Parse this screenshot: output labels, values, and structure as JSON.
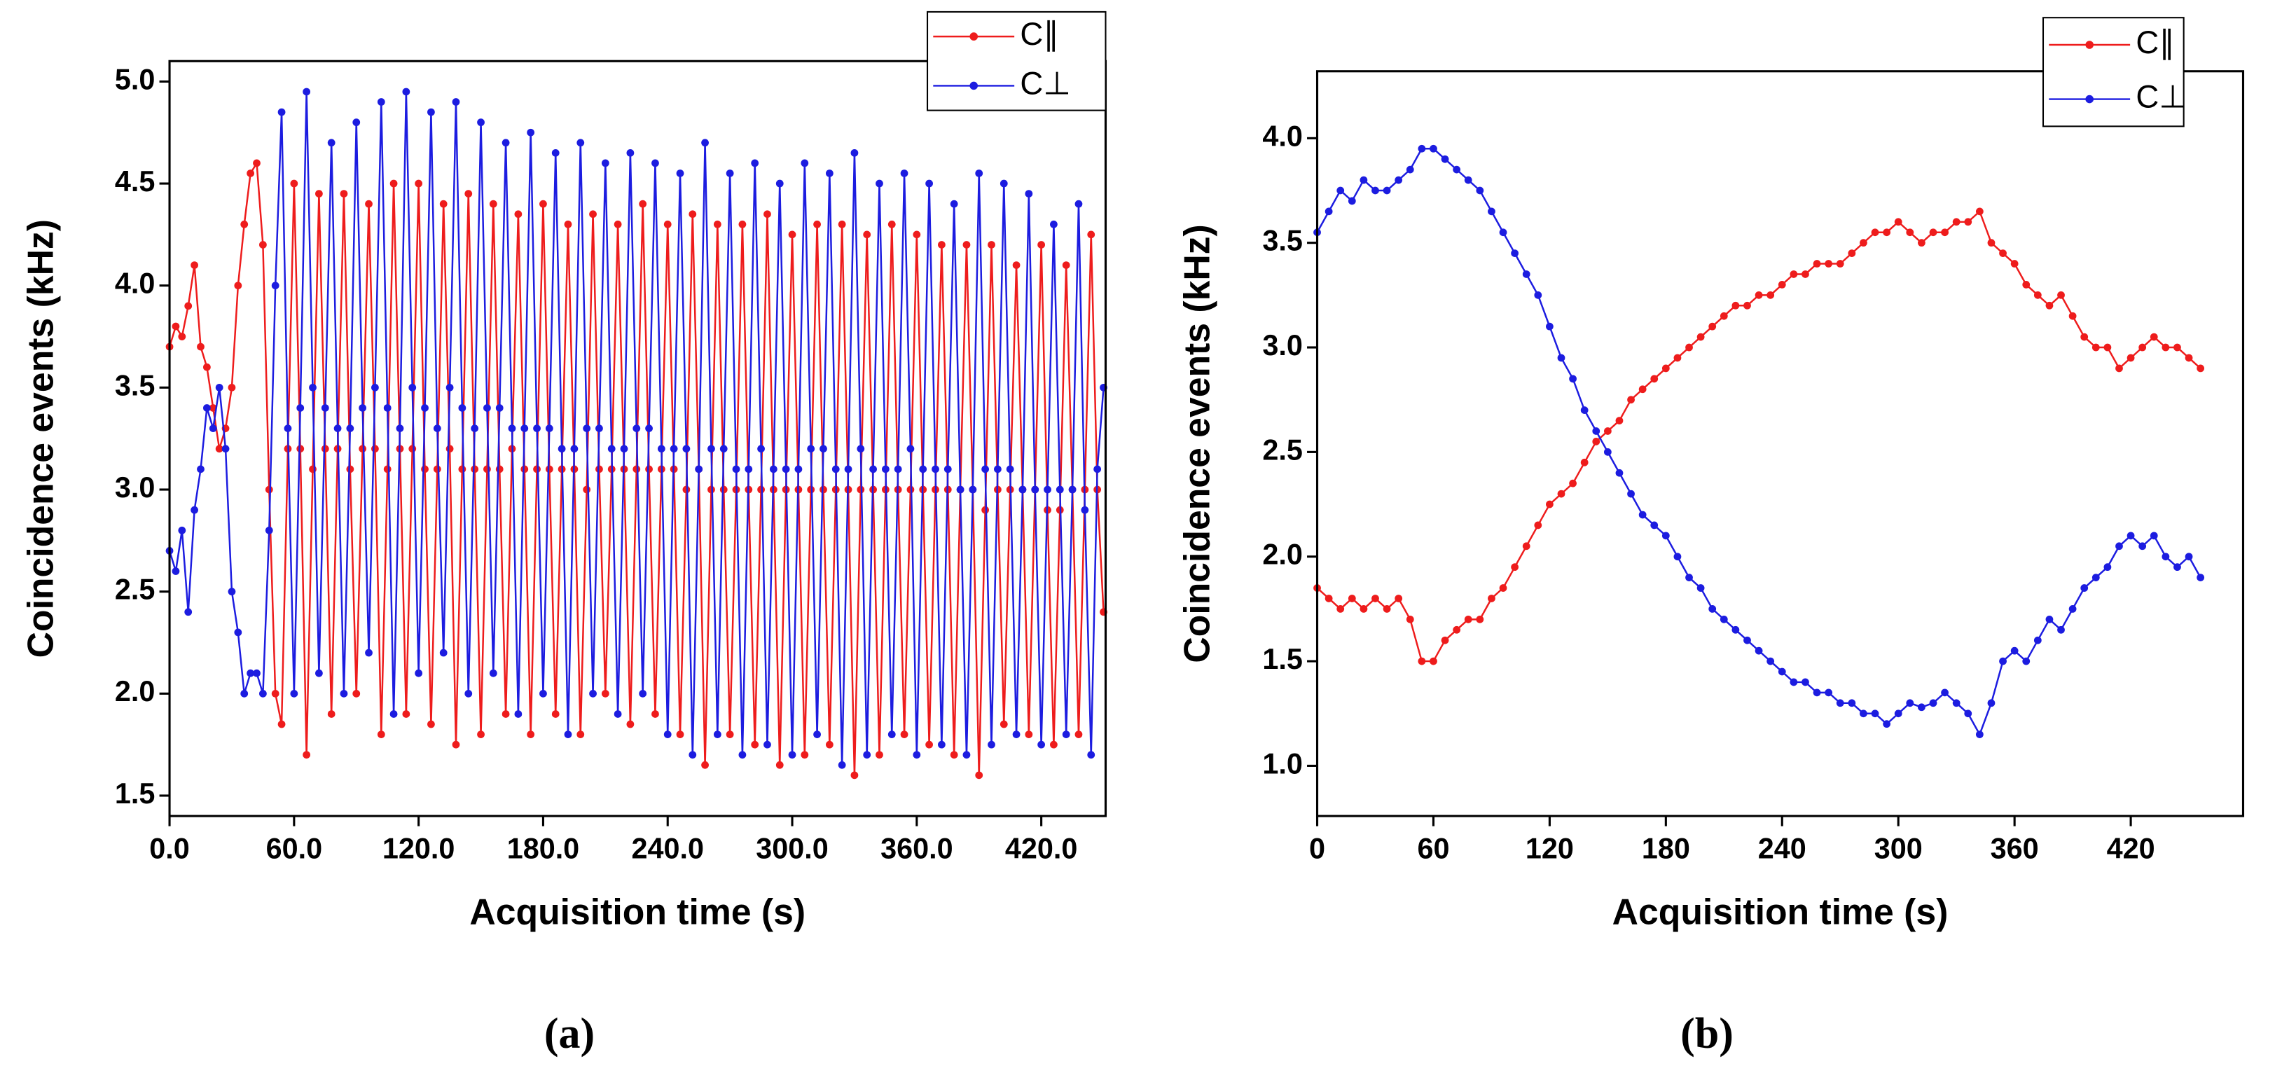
{
  "chart_data": [
    {
      "type": "line",
      "caption": "(a)",
      "xlabel": "Acquisition time (s)",
      "ylabel": "Coincidence events (kHz)",
      "xlim": [
        0,
        451
      ],
      "ylim": [
        1.4,
        5.1
      ],
      "xticks": [
        {
          "value": 0,
          "label": "0.0"
        },
        {
          "value": 60,
          "label": "60.0"
        },
        {
          "value": 120,
          "label": "120.0"
        },
        {
          "value": 180,
          "label": "180.0"
        },
        {
          "value": 240,
          "label": "240.0"
        },
        {
          "value": 300,
          "label": "300.0"
        },
        {
          "value": 360,
          "label": "360.0"
        },
        {
          "value": 420,
          "label": "420.0"
        }
      ],
      "yticks": [
        1.5,
        {
          "value": 2,
          "label": "2.0"
        },
        2.5,
        {
          "value": 3,
          "label": "3.0"
        },
        3.5,
        {
          "value": 4,
          "label": "4.0"
        },
        4.5,
        {
          "value": 5,
          "label": "5.0"
        }
      ],
      "legend": "top-right",
      "x": [
        0,
        3,
        6,
        9,
        12,
        15,
        18,
        21,
        24,
        27,
        30,
        33,
        36,
        39,
        42,
        45,
        48,
        51,
        54,
        57,
        60,
        63,
        66,
        69,
        72,
        75,
        78,
        81,
        84,
        87,
        90,
        93,
        96,
        99,
        102,
        105,
        108,
        111,
        114,
        117,
        120,
        123,
        126,
        129,
        132,
        135,
        138,
        141,
        144,
        147,
        150,
        153,
        156,
        159,
        162,
        165,
        168,
        171,
        174,
        177,
        180,
        183,
        186,
        189,
        192,
        195,
        198,
        201,
        204,
        207,
        210,
        213,
        216,
        219,
        222,
        225,
        228,
        231,
        234,
        237,
        240,
        243,
        246,
        249,
        252,
        255,
        258,
        261,
        264,
        267,
        270,
        273,
        276,
        279,
        282,
        285,
        288,
        291,
        294,
        297,
        300,
        303,
        306,
        309,
        312,
        315,
        318,
        321,
        324,
        327,
        330,
        333,
        336,
        339,
        342,
        345,
        348,
        351,
        354,
        357,
        360,
        363,
        366,
        369,
        372,
        375,
        378,
        381,
        384,
        387,
        390,
        393,
        396,
        399,
        402,
        405,
        408,
        411,
        414,
        417,
        420,
        423,
        426,
        429,
        432,
        435,
        438,
        441,
        444,
        447,
        450
      ],
      "series": [
        {
          "name": "C∥",
          "color": "#ee1c1c",
          "values": [
            3.7,
            3.8,
            3.75,
            3.9,
            4.1,
            3.7,
            3.6,
            3.4,
            3.2,
            3.3,
            3.5,
            4.0,
            4.3,
            4.55,
            4.6,
            4.2,
            3.0,
            2.0,
            1.85,
            3.2,
            4.5,
            3.2,
            1.7,
            3.1,
            4.45,
            3.2,
            1.9,
            3.2,
            4.45,
            3.1,
            2.0,
            3.2,
            4.4,
            3.2,
            1.8,
            3.1,
            4.5,
            3.2,
            1.9,
            3.2,
            4.5,
            3.1,
            1.85,
            3.1,
            4.4,
            3.2,
            1.75,
            3.1,
            4.45,
            3.1,
            1.8,
            3.1,
            4.4,
            3.1,
            1.9,
            3.2,
            4.35,
            3.1,
            1.8,
            3.1,
            4.4,
            3.1,
            1.9,
            3.1,
            4.3,
            3.1,
            1.8,
            3.0,
            4.35,
            3.1,
            2.0,
            3.1,
            4.3,
            3.1,
            1.85,
            3.1,
            4.4,
            3.1,
            1.9,
            3.1,
            4.3,
            3.1,
            1.8,
            3.0,
            4.35,
            3.1,
            1.65,
            3.0,
            4.3,
            3.0,
            1.8,
            3.0,
            4.3,
            3.0,
            1.75,
            3.0,
            4.35,
            3.0,
            1.65,
            3.0,
            4.25,
            3.0,
            1.7,
            3.0,
            4.3,
            3.0,
            1.75,
            3.0,
            4.3,
            3.0,
            1.6,
            3.0,
            4.25,
            3.0,
            1.7,
            3.0,
            4.3,
            3.0,
            1.8,
            3.0,
            4.25,
            3.0,
            1.75,
            3.0,
            4.2,
            3.0,
            1.7,
            3.0,
            4.2,
            3.0,
            1.6,
            2.9,
            4.2,
            3.0,
            1.85,
            3.0,
            4.1,
            3.0,
            1.8,
            3.0,
            4.2,
            2.9,
            1.75,
            2.9,
            4.1,
            3.0,
            1.8,
            3.0,
            4.25,
            3.0,
            2.4
          ]
        },
        {
          "name": "C⊥",
          "color": "#1c1ce0",
          "values": [
            2.7,
            2.6,
            2.8,
            2.4,
            2.9,
            3.1,
            3.4,
            3.3,
            3.5,
            3.2,
            2.5,
            2.3,
            2.0,
            2.1,
            2.1,
            2.0,
            2.8,
            4.0,
            4.85,
            3.3,
            2.0,
            3.4,
            4.95,
            3.5,
            2.1,
            3.4,
            4.7,
            3.3,
            2.0,
            3.3,
            4.8,
            3.4,
            2.2,
            3.5,
            4.9,
            3.4,
            1.9,
            3.3,
            4.95,
            3.5,
            2.1,
            3.4,
            4.85,
            3.3,
            2.2,
            3.5,
            4.9,
            3.4,
            2.0,
            3.3,
            4.8,
            3.4,
            2.1,
            3.4,
            4.7,
            3.3,
            1.9,
            3.3,
            4.75,
            3.3,
            2.0,
            3.3,
            4.65,
            3.2,
            1.8,
            3.2,
            4.7,
            3.3,
            2.0,
            3.3,
            4.6,
            3.2,
            1.9,
            3.2,
            4.65,
            3.3,
            2.0,
            3.3,
            4.6,
            3.2,
            1.8,
            3.2,
            4.55,
            3.2,
            1.7,
            3.1,
            4.7,
            3.2,
            1.8,
            3.2,
            4.55,
            3.1,
            1.7,
            3.1,
            4.6,
            3.2,
            1.75,
            3.1,
            4.5,
            3.1,
            1.7,
            3.1,
            4.6,
            3.2,
            1.8,
            3.2,
            4.55,
            3.1,
            1.65,
            3.1,
            4.65,
            3.2,
            1.7,
            3.1,
            4.5,
            3.1,
            1.8,
            3.1,
            4.55,
            3.2,
            1.7,
            3.1,
            4.5,
            3.1,
            1.75,
            3.1,
            4.4,
            3.0,
            1.7,
            3.0,
            4.55,
            3.1,
            1.75,
            3.1,
            4.5,
            3.1,
            1.8,
            3.0,
            4.45,
            3.0,
            1.75,
            3.0,
            4.3,
            3.0,
            1.8,
            3.0,
            4.4,
            2.9,
            1.7,
            3.1,
            3.5
          ]
        }
      ]
    },
    {
      "type": "line",
      "caption": "(b)",
      "xlabel": "Acquisition time (s)",
      "ylabel": "Coincidence events (kHz)",
      "xlim": [
        0,
        478
      ],
      "ylim": [
        0.76,
        4.32
      ],
      "xticks": [
        0,
        60,
        120,
        180,
        240,
        300,
        360,
        420
      ],
      "yticks": [
        {
          "value": 1,
          "label": "1.0"
        },
        1.5,
        {
          "value": 2,
          "label": "2.0"
        },
        2.5,
        {
          "value": 3,
          "label": "3.0"
        },
        3.5,
        {
          "value": 4,
          "label": "4.0"
        }
      ],
      "legend": "top-right",
      "x": [
        0,
        6,
        12,
        18,
        24,
        30,
        36,
        42,
        48,
        54,
        60,
        66,
        72,
        78,
        84,
        90,
        96,
        102,
        108,
        114,
        120,
        126,
        132,
        138,
        144,
        150,
        156,
        162,
        168,
        174,
        180,
        186,
        192,
        198,
        204,
        210,
        216,
        222,
        228,
        234,
        240,
        246,
        252,
        258,
        264,
        270,
        276,
        282,
        288,
        294,
        300,
        306,
        312,
        318,
        324,
        330,
        336,
        342,
        348,
        354,
        360,
        366,
        372,
        378,
        384,
        390,
        396,
        402,
        408,
        414,
        420,
        426,
        432,
        438,
        444,
        450,
        456
      ],
      "series": [
        {
          "name": "C∥",
          "color": "#ee1c1c",
          "values": [
            1.85,
            1.8,
            1.75,
            1.8,
            1.75,
            1.8,
            1.75,
            1.8,
            1.7,
            1.5,
            1.5,
            1.6,
            1.65,
            1.7,
            1.7,
            1.8,
            1.85,
            1.95,
            2.05,
            2.15,
            2.25,
            2.3,
            2.35,
            2.45,
            2.55,
            2.6,
            2.65,
            2.75,
            2.8,
            2.85,
            2.9,
            2.95,
            3.0,
            3.05,
            3.1,
            3.15,
            3.2,
            3.2,
            3.25,
            3.25,
            3.3,
            3.35,
            3.35,
            3.4,
            3.4,
            3.4,
            3.45,
            3.5,
            3.55,
            3.55,
            3.6,
            3.55,
            3.5,
            3.55,
            3.55,
            3.6,
            3.6,
            3.65,
            3.5,
            3.45,
            3.4,
            3.3,
            3.25,
            3.2,
            3.25,
            3.15,
            3.05,
            3.0,
            3.0,
            2.9,
            2.95,
            3.0,
            3.05,
            3.0,
            3.0,
            2.95,
            2.9
          ]
        },
        {
          "name": "C⊥",
          "color": "#1c1ce0",
          "values": [
            3.55,
            3.65,
            3.75,
            3.7,
            3.8,
            3.75,
            3.75,
            3.8,
            3.85,
            3.95,
            3.95,
            3.9,
            3.85,
            3.8,
            3.75,
            3.65,
            3.55,
            3.45,
            3.35,
            3.25,
            3.1,
            2.95,
            2.85,
            2.7,
            2.6,
            2.5,
            2.4,
            2.3,
            2.2,
            2.15,
            2.1,
            2.0,
            1.9,
            1.85,
            1.75,
            1.7,
            1.65,
            1.6,
            1.55,
            1.5,
            1.45,
            1.4,
            1.4,
            1.35,
            1.35,
            1.3,
            1.3,
            1.25,
            1.25,
            1.2,
            1.25,
            1.3,
            1.28,
            1.3,
            1.35,
            1.3,
            1.25,
            1.15,
            1.3,
            1.5,
            1.55,
            1.5,
            1.6,
            1.7,
            1.65,
            1.75,
            1.85,
            1.9,
            1.95,
            2.05,
            2.1,
            2.05,
            2.1,
            2.0,
            1.95,
            2.0,
            1.9
          ]
        }
      ]
    }
  ]
}
